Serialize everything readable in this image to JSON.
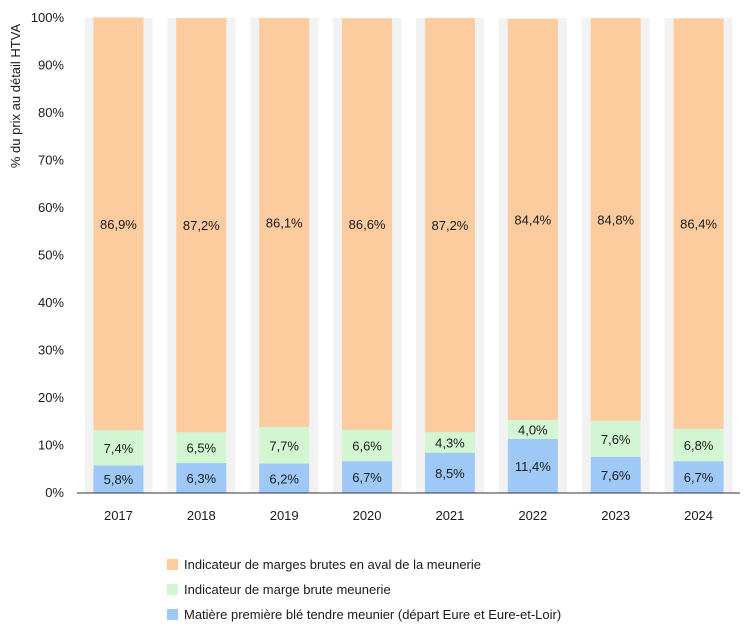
{
  "chart_data": {
    "type": "bar",
    "stacked": true,
    "percent_stacked": true,
    "categories": [
      "2017",
      "2018",
      "2019",
      "2020",
      "2021",
      "2022",
      "2023",
      "2024"
    ],
    "series": [
      {
        "name": "Matière première blé tendre meunier (départ Eure et Eure-et-Loir)",
        "color": "#9ec9f7",
        "values": [
          5.8,
          6.3,
          6.2,
          6.7,
          8.5,
          11.4,
          7.6,
          6.7
        ],
        "labels": [
          "5,8%",
          "6,3%",
          "6,2%",
          "6,7%",
          "8,5%",
          "11,4%",
          "7,6%",
          "6,7%"
        ]
      },
      {
        "name": "Indicateur de marge brute meunerie",
        "color": "#d2f6d2",
        "values": [
          7.4,
          6.5,
          7.7,
          6.6,
          4.3,
          4.0,
          7.6,
          6.8
        ],
        "labels": [
          "7,4%",
          "6,5%",
          "7,7%",
          "6,6%",
          "4,3%",
          "4,0%",
          "7,6%",
          "6,8%"
        ]
      },
      {
        "name": "Indicateur de marges brutes en aval de la meunerie",
        "color": "#fccb9e",
        "values": [
          86.9,
          87.2,
          86.1,
          86.6,
          87.2,
          84.4,
          84.8,
          86.4
        ],
        "labels": [
          "86,9%",
          "87,2%",
          "86,1%",
          "86,6%",
          "87,2%",
          "84,4%",
          "84,8%",
          "86,4%"
        ]
      }
    ],
    "ylabel": "% du prix au détail HTVA",
    "xlabel": "",
    "ylim": [
      0,
      100
    ],
    "yticks": [
      "0%",
      "10%",
      "20%",
      "30%",
      "40%",
      "50%",
      "60%",
      "70%",
      "80%",
      "90%",
      "100%"
    ],
    "grid": "vertical bands",
    "legend_position": "bottom",
    "legend_order": [
      "Indicateur de marges brutes en aval de la meunerie",
      "Indicateur de marge brute meunerie",
      "Matière première blé tendre meunier (départ Eure et Eure-et-Loir)"
    ]
  }
}
